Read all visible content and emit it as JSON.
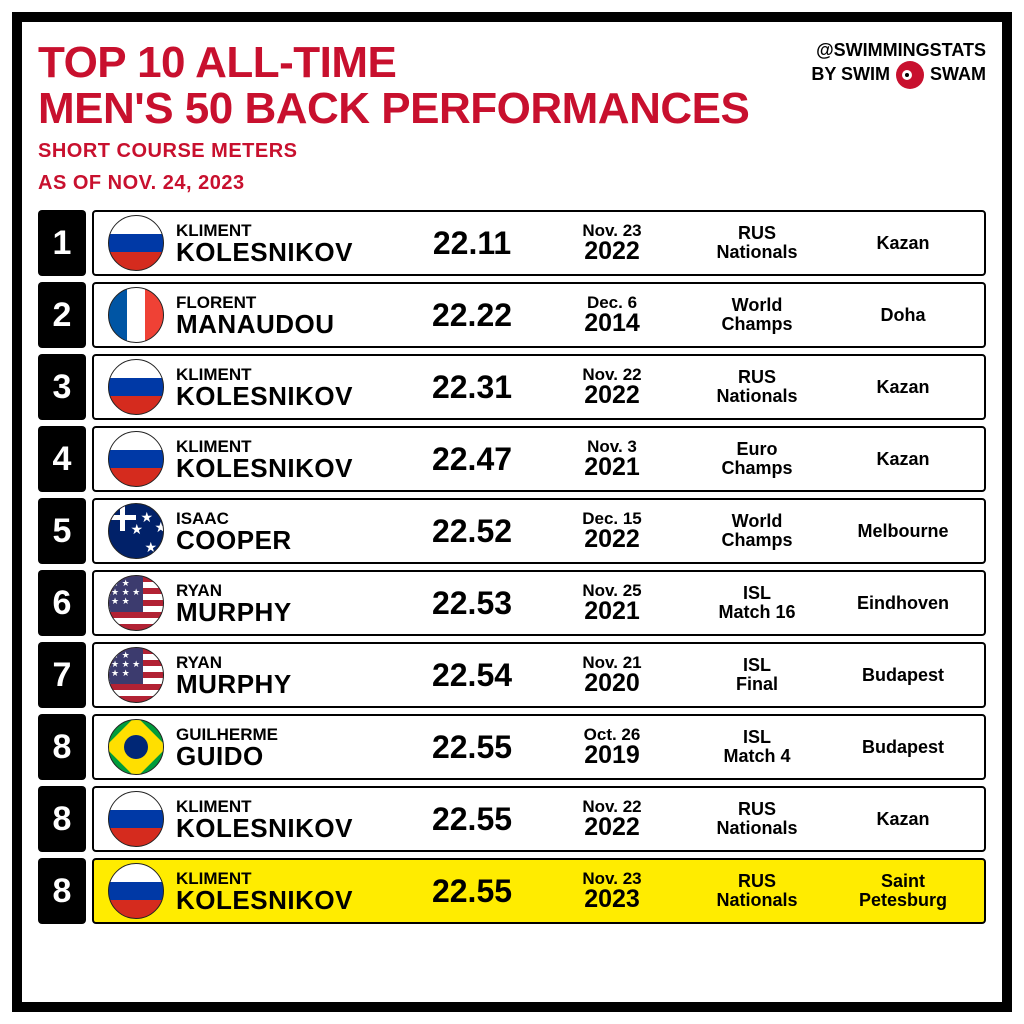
{
  "colors": {
    "accent_red": "#c8102e",
    "black": "#000000",
    "highlight": "#ffec00",
    "white": "#ffffff"
  },
  "header": {
    "title_line1": "TOP 10 ALL-TIME",
    "title_line2": "MEN'S 50 BACK PERFORMANCES",
    "subtitle_line1": "SHORT COURSE METERS",
    "subtitle_line2": "AS OF NOV. 24, 2023",
    "credit_handle": "@SWIMMINGSTATS",
    "credit_by": "BY SWIM",
    "credit_by2": "SWAM"
  },
  "table": {
    "type": "table",
    "columns": [
      "rank",
      "flag",
      "first",
      "last",
      "time",
      "date",
      "year",
      "meet_l1",
      "meet_l2",
      "city"
    ],
    "rows": [
      {
        "rank": "1",
        "flag": "rus",
        "first": "KLIMENT",
        "last": "KOLESNIKOV",
        "time": "22.11",
        "date": "Nov. 23",
        "year": "2022",
        "meet_l1": "RUS",
        "meet_l2": "Nationals",
        "city": "Kazan",
        "highlight": false
      },
      {
        "rank": "2",
        "flag": "fra",
        "first": "FLORENT",
        "last": "MANAUDOU",
        "time": "22.22",
        "date": "Dec. 6",
        "year": "2014",
        "meet_l1": "World",
        "meet_l2": "Champs",
        "city": "Doha",
        "highlight": false
      },
      {
        "rank": "3",
        "flag": "rus",
        "first": "KLIMENT",
        "last": "KOLESNIKOV",
        "time": "22.31",
        "date": "Nov. 22",
        "year": "2022",
        "meet_l1": "RUS",
        "meet_l2": "Nationals",
        "city": "Kazan",
        "highlight": false
      },
      {
        "rank": "4",
        "flag": "rus",
        "first": "KLIMENT",
        "last": "KOLESNIKOV",
        "time": "22.47",
        "date": "Nov. 3",
        "year": "2021",
        "meet_l1": "Euro",
        "meet_l2": "Champs",
        "city": "Kazan",
        "highlight": false
      },
      {
        "rank": "5",
        "flag": "aus",
        "first": "ISAAC",
        "last": "COOPER",
        "time": "22.52",
        "date": "Dec. 15",
        "year": "2022",
        "meet_l1": "World",
        "meet_l2": "Champs",
        "city": "Melbourne",
        "highlight": false
      },
      {
        "rank": "6",
        "flag": "usa",
        "first": "RYAN",
        "last": "MURPHY",
        "time": "22.53",
        "date": "Nov. 25",
        "year": "2021",
        "meet_l1": "ISL",
        "meet_l2": "Match 16",
        "city": "Eindhoven",
        "highlight": false
      },
      {
        "rank": "7",
        "flag": "usa",
        "first": "RYAN",
        "last": "MURPHY",
        "time": "22.54",
        "date": "Nov. 21",
        "year": "2020",
        "meet_l1": "ISL",
        "meet_l2": "Final",
        "city": "Budapest",
        "highlight": false
      },
      {
        "rank": "8",
        "flag": "bra",
        "first": "GUILHERME",
        "last": "GUIDO",
        "time": "22.55",
        "date": "Oct. 26",
        "year": "2019",
        "meet_l1": "ISL",
        "meet_l2": "Match 4",
        "city": "Budapest",
        "highlight": false
      },
      {
        "rank": "8",
        "flag": "rus",
        "first": "KLIMENT",
        "last": "KOLESNIKOV",
        "time": "22.55",
        "date": "Nov. 22",
        "year": "2022",
        "meet_l1": "RUS",
        "meet_l2": "Nationals",
        "city": "Kazan",
        "highlight": false
      },
      {
        "rank": "8",
        "flag": "rus",
        "first": "KLIMENT",
        "last": "KOLESNIKOV",
        "time": "22.55",
        "date": "Nov. 23",
        "year": "2023",
        "meet_l1": "RUS",
        "meet_l2": "Nationals",
        "city": "Saint Petesburg",
        "highlight": true
      }
    ]
  }
}
